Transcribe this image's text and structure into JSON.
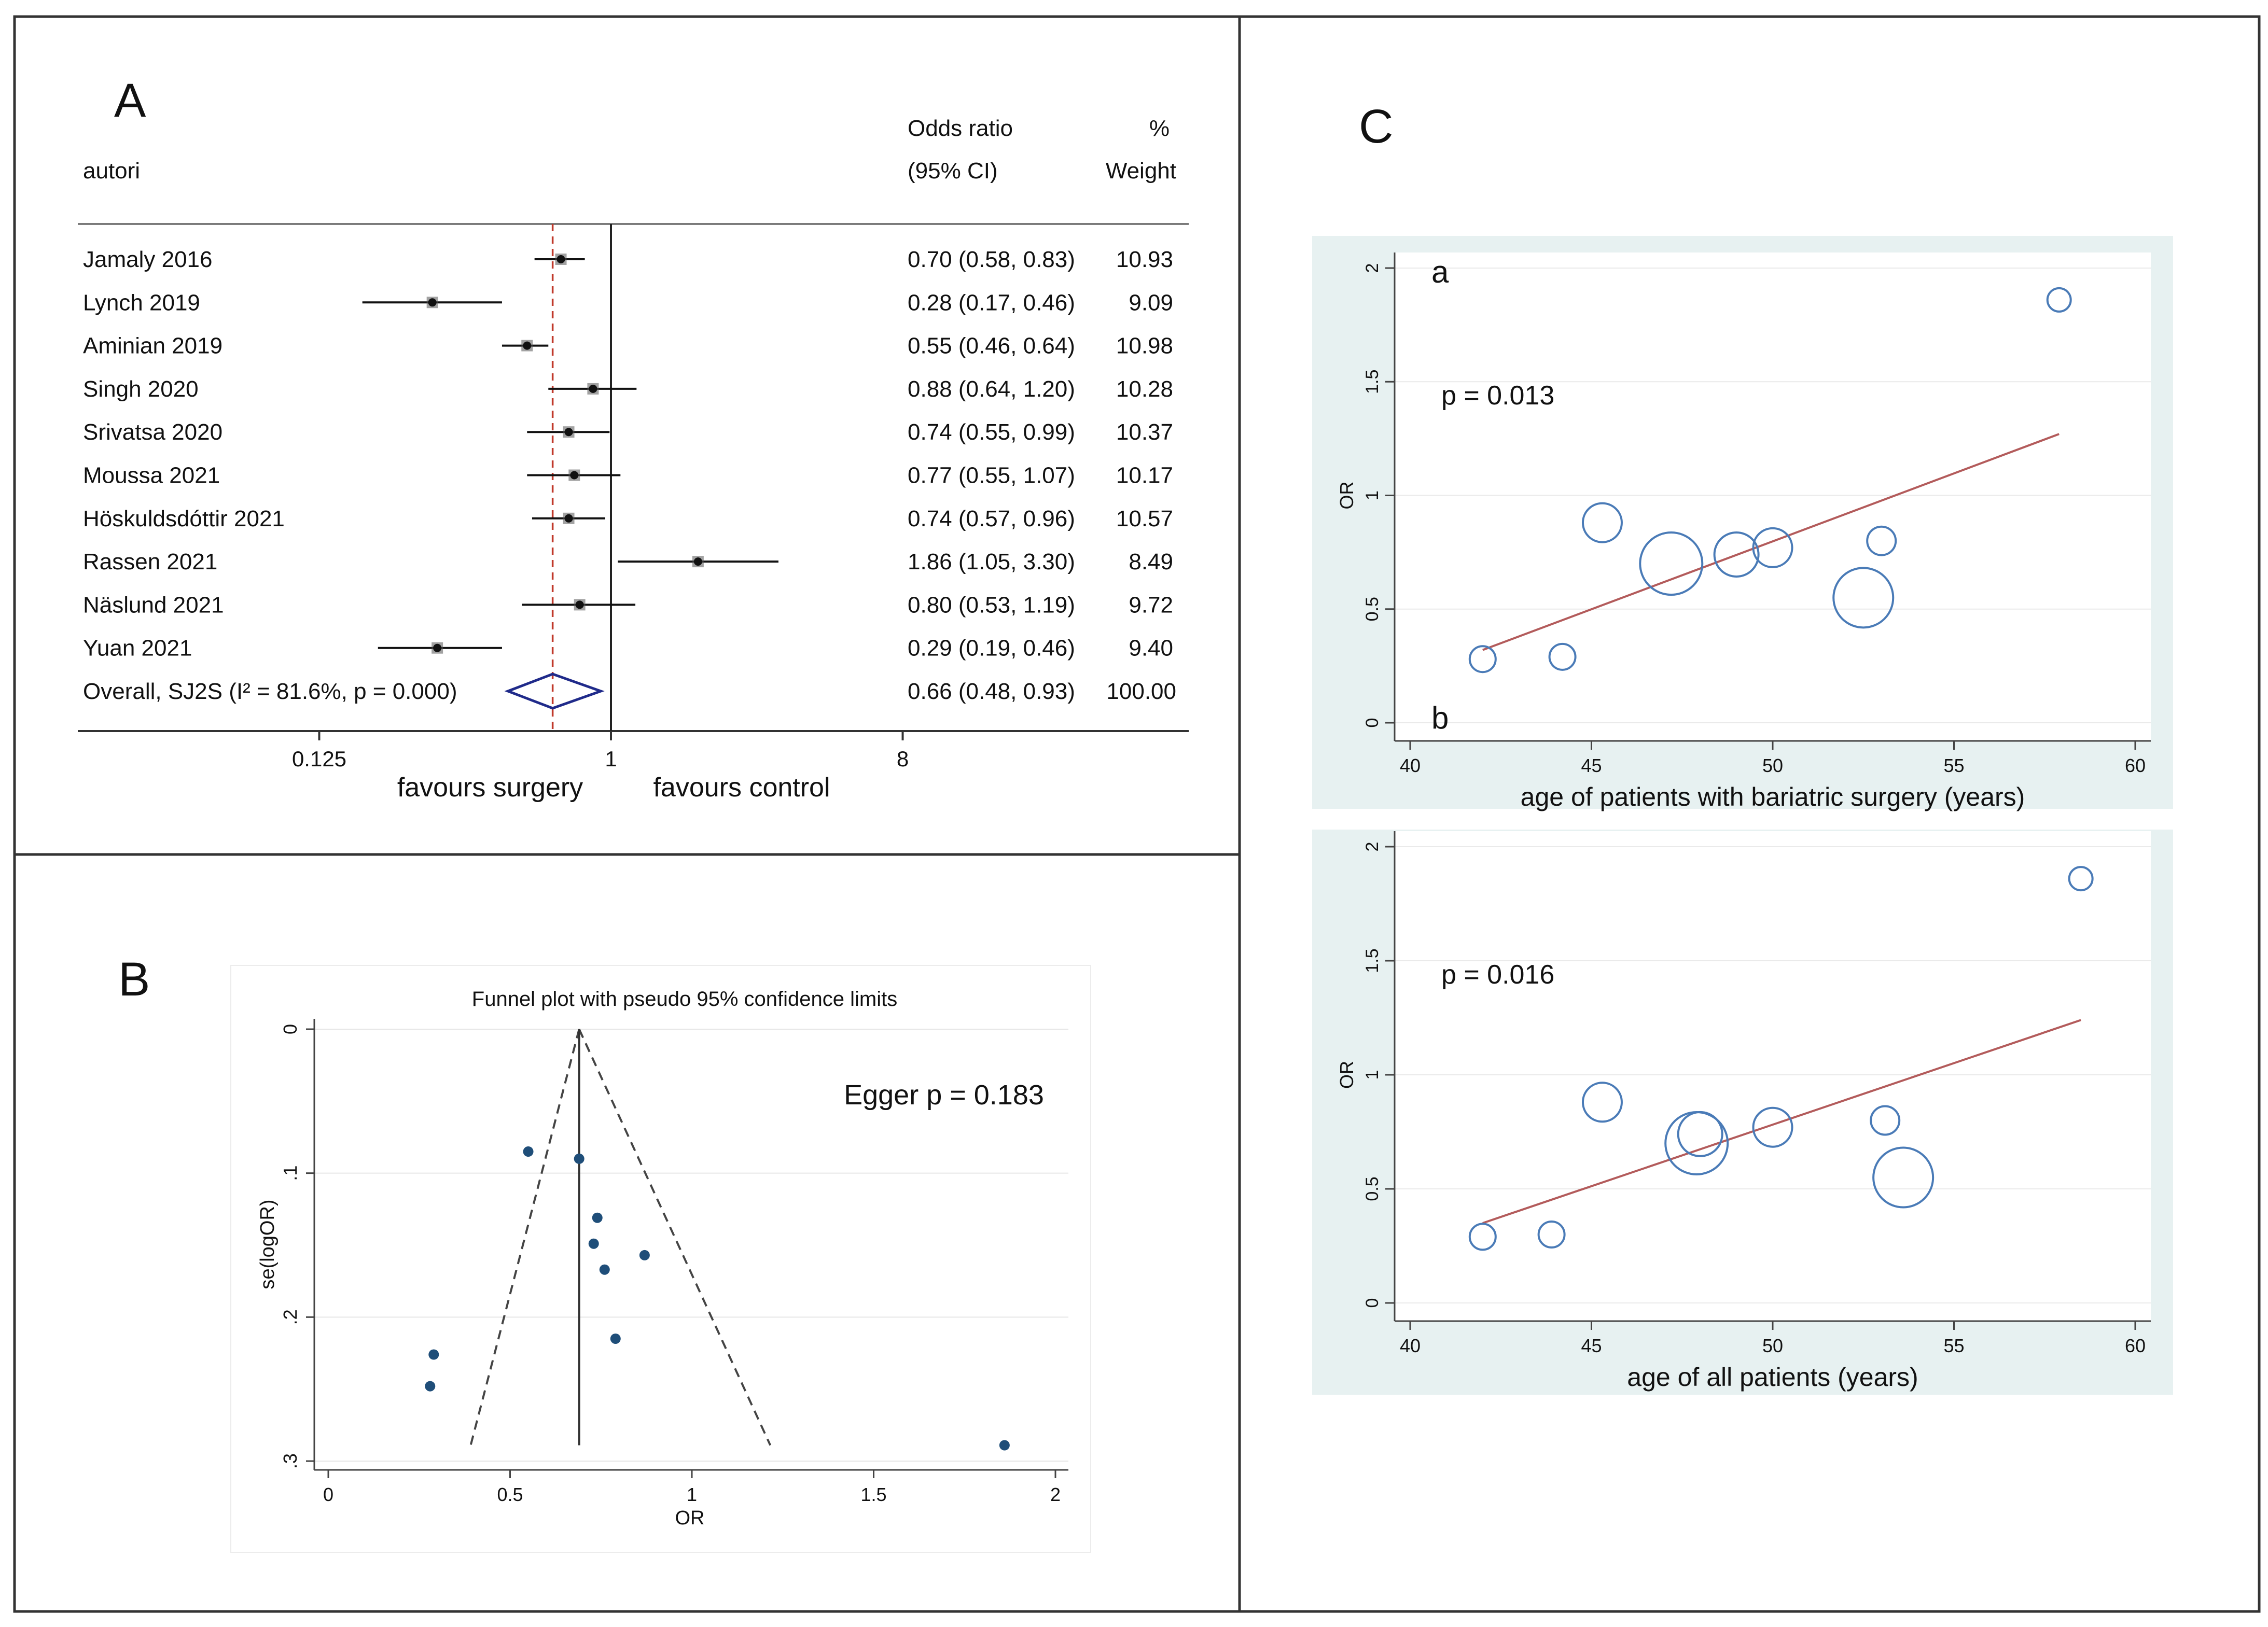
{
  "panels": {
    "A": {
      "letter": "A",
      "header": {
        "col_study": "autori",
        "col_or_line1": "Odds ratio",
        "col_or_line2": "(95% CI)",
        "col_w_line1": "%",
        "col_w_line2": "Weight"
      },
      "footer": {
        "left_label": "favours surgery",
        "right_label": "favours control"
      },
      "colors": {
        "marker": "#111111",
        "diamond": "#1f2a8a",
        "refline": "#c0392b"
      }
    },
    "B": {
      "letter": "B",
      "annotation": "Egger p = 0.183",
      "colors": {
        "points": "#1f4e79",
        "grid": "#e6e6e6"
      }
    },
    "C": {
      "letter": "C",
      "colors": {
        "background": "#e7f1f1",
        "markers": "#4a7bb7",
        "fit_line": "#b35b5b"
      }
    }
  },
  "chart_data": [
    {
      "id": "forest",
      "type": "scatter",
      "subtype": "forest plot",
      "x_scale": "log",
      "xticks": [
        0.125,
        1,
        8
      ],
      "xtick_labels": [
        "0.125",
        "1",
        "8"
      ],
      "pooled_estimate_line": 0.66,
      "studies": [
        {
          "label": "Jamaly 2016",
          "or": 0.7,
          "lo": 0.58,
          "hi": 0.83,
          "ci_text": "0.70 (0.58, 0.83)",
          "weight": "10.93"
        },
        {
          "label": "Lynch 2019",
          "or": 0.28,
          "lo": 0.17,
          "hi": 0.46,
          "ci_text": "0.28 (0.17, 0.46)",
          "weight": "9.09"
        },
        {
          "label": "Aminian 2019",
          "or": 0.55,
          "lo": 0.46,
          "hi": 0.64,
          "ci_text": "0.55 (0.46, 0.64)",
          "weight": "10.98"
        },
        {
          "label": "Singh 2020",
          "or": 0.88,
          "lo": 0.64,
          "hi": 1.2,
          "ci_text": "0.88 (0.64, 1.20)",
          "weight": "10.28"
        },
        {
          "label": "Srivatsa 2020",
          "or": 0.74,
          "lo": 0.55,
          "hi": 0.99,
          "ci_text": "0.74 (0.55, 0.99)",
          "weight": "10.37"
        },
        {
          "label": "Moussa 2021",
          "or": 0.77,
          "lo": 0.55,
          "hi": 1.07,
          "ci_text": "0.77 (0.55, 1.07)",
          "weight": "10.17"
        },
        {
          "label": "Höskuldsdóttir 2021",
          "or": 0.74,
          "lo": 0.57,
          "hi": 0.96,
          "ci_text": "0.74 (0.57, 0.96)",
          "weight": "10.57"
        },
        {
          "label": "Rassen 2021",
          "or": 1.86,
          "lo": 1.05,
          "hi": 3.3,
          "ci_text": "1.86 (1.05, 3.30)",
          "weight": "8.49"
        },
        {
          "label": "Näslund 2021",
          "or": 0.8,
          "lo": 0.53,
          "hi": 1.19,
          "ci_text": "0.80 (0.53, 1.19)",
          "weight": "9.72"
        },
        {
          "label": "Yuan 2021",
          "or": 0.29,
          "lo": 0.19,
          "hi": 0.46,
          "ci_text": "0.29 (0.19, 0.46)",
          "weight": "9.40"
        }
      ],
      "overall": {
        "label": "Overall, SJ2S (I² = 81.6%, p = 0.000)",
        "or": 0.66,
        "lo": 0.48,
        "hi": 0.93,
        "ci_text": "0.66 (0.48, 0.93)",
        "weight": "100.00"
      }
    },
    {
      "id": "funnel",
      "type": "scatter",
      "subtype": "funnel plot",
      "title": "Funnel plot with pseudo 95% confidence limits",
      "xlabel": "OR",
      "ylabel": "se(logOR)",
      "xlim": [
        0,
        2
      ],
      "ylim": [
        0,
        0.3
      ],
      "y_reversed": true,
      "xticks": [
        0,
        0.5,
        1,
        1.5,
        2
      ],
      "xtick_labels": [
        "0",
        "0.5",
        "1",
        "1.5",
        "2"
      ],
      "yticks": [
        0,
        0.1,
        0.2,
        0.3
      ],
      "ytick_labels": [
        "0",
        ".1",
        ".2",
        ".3"
      ],
      "pooled": 0.69,
      "points": [
        {
          "x": 0.55,
          "y": 0.085
        },
        {
          "x": 0.69,
          "y": 0.09
        },
        {
          "x": 0.74,
          "y": 0.131
        },
        {
          "x": 0.73,
          "y": 0.149
        },
        {
          "x": 0.76,
          "y": 0.167
        },
        {
          "x": 0.87,
          "y": 0.157
        },
        {
          "x": 0.79,
          "y": 0.215
        },
        {
          "x": 0.29,
          "y": 0.226
        },
        {
          "x": 0.28,
          "y": 0.248
        },
        {
          "x": 1.86,
          "y": 0.289
        }
      ]
    },
    {
      "id": "meta-reg-a",
      "type": "scatter",
      "panel_label": "a",
      "p_text": "p = 0.013",
      "xlabel": "age of patients with bariatric surgery (years)",
      "ylabel": "OR",
      "xlim": [
        40,
        60
      ],
      "ylim": [
        0,
        2
      ],
      "xticks": [
        40,
        45,
        50,
        55,
        60
      ],
      "xtick_labels": [
        "40",
        "45",
        "50",
        "55",
        "60"
      ],
      "yticks": [
        0,
        0.5,
        1,
        1.5,
        2
      ],
      "ytick_labels": [
        "0",
        "0.5",
        "1",
        "1.5",
        "2"
      ],
      "points": [
        {
          "x": 42.0,
          "y": 0.28,
          "w": 0.3
        },
        {
          "x": 44.2,
          "y": 0.29,
          "w": 0.3
        },
        {
          "x": 45.3,
          "y": 0.88,
          "w": 0.55
        },
        {
          "x": 47.2,
          "y": 0.7,
          "w": 1.0
        },
        {
          "x": 49.0,
          "y": 0.74,
          "w": 0.65
        },
        {
          "x": 50.0,
          "y": 0.77,
          "w": 0.55
        },
        {
          "x": 52.5,
          "y": 0.55,
          "w": 0.95
        },
        {
          "x": 53.0,
          "y": 0.8,
          "w": 0.35
        },
        {
          "x": 57.9,
          "y": 1.86,
          "w": 0.25
        }
      ],
      "fit": [
        {
          "x": 42.0,
          "y": 0.32
        },
        {
          "x": 57.9,
          "y": 1.27
        }
      ]
    },
    {
      "id": "meta-reg-b",
      "type": "scatter",
      "panel_label": "b",
      "p_text": "p = 0.016",
      "xlabel": "age of all patients (years)",
      "ylabel": "OR",
      "xlim": [
        40,
        60
      ],
      "ylim": [
        0,
        2
      ],
      "xticks": [
        40,
        45,
        50,
        55,
        60
      ],
      "xtick_labels": [
        "40",
        "45",
        "50",
        "55",
        "60"
      ],
      "yticks": [
        0,
        0.5,
        1,
        1.5,
        2
      ],
      "ytick_labels": [
        "0",
        "0.5",
        "1",
        "1.5",
        "2"
      ],
      "points": [
        {
          "x": 42.0,
          "y": 0.29,
          "w": 0.3
        },
        {
          "x": 43.9,
          "y": 0.3,
          "w": 0.3
        },
        {
          "x": 45.3,
          "y": 0.88,
          "w": 0.55
        },
        {
          "x": 47.9,
          "y": 0.7,
          "w": 1.0
        },
        {
          "x": 48.0,
          "y": 0.74,
          "w": 0.65
        },
        {
          "x": 50.0,
          "y": 0.77,
          "w": 0.55
        },
        {
          "x": 53.6,
          "y": 0.55,
          "w": 0.95
        },
        {
          "x": 53.1,
          "y": 0.8,
          "w": 0.35
        },
        {
          "x": 58.5,
          "y": 1.86,
          "w": 0.25
        }
      ],
      "fit": [
        {
          "x": 42.0,
          "y": 0.35
        },
        {
          "x": 58.5,
          "y": 1.24
        }
      ]
    }
  ]
}
